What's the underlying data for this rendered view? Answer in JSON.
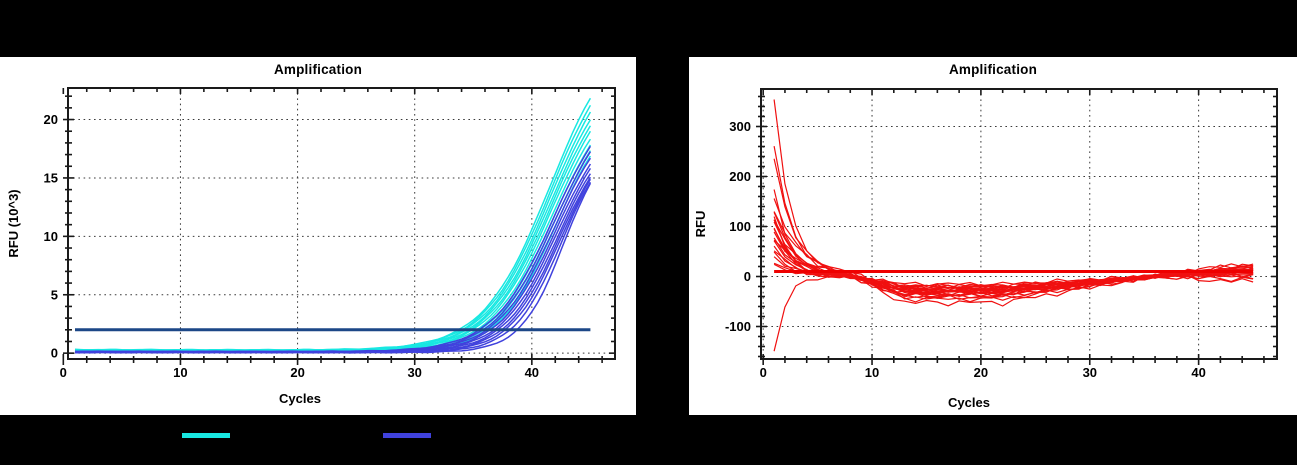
{
  "page_bg": "#000000",
  "colors": {
    "panel_bg": "#ffffff",
    "text": "#000000",
    "axis": "#1a1a1a",
    "grid": "#3a3a3a",
    "cyan_trace": "#18e8e2",
    "blue_trace": "#4042dd",
    "left_threshold": "#1c4787",
    "red_trace": "#f01010",
    "red_threshold": "#ee0000"
  },
  "legend": {
    "items": [
      {
        "id": "cyan-group",
        "color": "#18e8e2",
        "label": ""
      },
      {
        "id": "blue-group",
        "color": "#4042dd",
        "label": ""
      }
    ]
  },
  "chart_data": [
    {
      "type": "line",
      "title": "Amplification",
      "xlabel": "Cycles",
      "ylabel": "RFU (10^3)",
      "xlim": [
        0.4,
        47.1
      ],
      "ylim": [
        -0.5,
        22.7
      ],
      "xticks": [
        0,
        10,
        20,
        30,
        40
      ],
      "yticks": [
        0,
        5,
        10,
        15,
        20
      ],
      "x_minor_step": 2,
      "y_minor_step": 1,
      "grid": "dotted",
      "legend_position": "below-outside",
      "threshold": 2,
      "cycles": [
        1,
        45
      ],
      "series_model": "qpcr_sigmoid",
      "series": [
        {
          "group": "cyan",
          "ct": 34.2,
          "end": 21.6,
          "base": 0.3
        },
        {
          "group": "cyan",
          "ct": 34.4,
          "end": 21.0,
          "base": 0.28
        },
        {
          "group": "cyan",
          "ct": 34.6,
          "end": 20.4,
          "base": 0.26
        },
        {
          "group": "cyan",
          "ct": 34.8,
          "end": 19.8,
          "base": 0.24
        },
        {
          "group": "cyan",
          "ct": 35.0,
          "end": 19.3,
          "base": 0.22
        },
        {
          "group": "cyan",
          "ct": 35.2,
          "end": 18.8,
          "base": 0.2
        },
        {
          "group": "cyan",
          "ct": 35.5,
          "end": 18.2,
          "base": 0.18
        },
        {
          "group": "cyan",
          "ct": 35.8,
          "end": 17.7,
          "base": 0.16
        },
        {
          "group": "cyan",
          "ct": 36.1,
          "end": 17.2,
          "base": 0.14
        },
        {
          "group": "cyan",
          "ct": 36.5,
          "end": 16.8,
          "base": 0.12
        },
        {
          "group": "blue",
          "ct": 35.7,
          "end": 17.6,
          "base": 0.15
        },
        {
          "group": "blue",
          "ct": 36.0,
          "end": 17.1,
          "base": 0.14
        },
        {
          "group": "blue",
          "ct": 36.3,
          "end": 16.6,
          "base": 0.13
        },
        {
          "group": "blue",
          "ct": 36.6,
          "end": 16.1,
          "base": 0.12
        },
        {
          "group": "blue",
          "ct": 36.9,
          "end": 15.7,
          "base": 0.11
        },
        {
          "group": "blue",
          "ct": 37.2,
          "end": 15.3,
          "base": 0.1
        },
        {
          "group": "blue",
          "ct": 37.5,
          "end": 15.0,
          "base": 0.09
        },
        {
          "group": "blue",
          "ct": 37.8,
          "end": 14.8,
          "base": 0.08
        },
        {
          "group": "blue",
          "ct": 38.2,
          "end": 14.6,
          "base": 0.07
        },
        {
          "group": "blue",
          "ct": 38.8,
          "end": 14.5,
          "base": 0.06
        }
      ]
    },
    {
      "type": "line",
      "title": "Amplification",
      "xlabel": "Cycles",
      "ylabel": "RFU",
      "xlim": [
        -0.2,
        47.2
      ],
      "ylim": [
        -165,
        375
      ],
      "xticks": [
        0,
        10,
        20,
        30,
        40
      ],
      "yticks": [
        -100,
        0,
        100,
        200,
        300
      ],
      "x_minor_step": 2,
      "y_minor_step": 20,
      "grid": "dotted",
      "threshold": 10,
      "cycles": [
        1,
        45
      ],
      "series_model": "baseline_drift",
      "series": [
        {
          "start": 350,
          "tau": 1.6,
          "dip": 18,
          "end": 12,
          "noise": 5
        },
        {
          "start": 262,
          "tau": 1.7,
          "dip": 26,
          "end": 20,
          "noise": 6
        },
        {
          "start": 235,
          "tau": 1.9,
          "dip": 30,
          "end": 8,
          "noise": 5
        },
        {
          "start": 172,
          "tau": 1.5,
          "dip": 22,
          "end": 15,
          "noise": 4
        },
        {
          "start": 160,
          "tau": 2.2,
          "dip": 35,
          "end": 5,
          "noise": 6
        },
        {
          "start": 132,
          "tau": 1.8,
          "dip": 40,
          "end": 0,
          "noise": 5
        },
        {
          "start": 128,
          "tau": 2.6,
          "dip": 24,
          "end": 25,
          "noise": 7
        },
        {
          "start": 120,
          "tau": 1.4,
          "dip": 30,
          "end": 10,
          "noise": 4
        },
        {
          "start": 115,
          "tau": 2.0,
          "dip": 45,
          "end": -5,
          "noise": 6
        },
        {
          "start": 110,
          "tau": 1.7,
          "dip": 20,
          "end": 18,
          "noise": 5
        },
        {
          "start": 105,
          "tau": 2.3,
          "dip": 34,
          "end": 8,
          "noise": 6
        },
        {
          "start": 100,
          "tau": 1.5,
          "dip": 52,
          "end": -10,
          "noise": 7
        },
        {
          "start": 95,
          "tau": 1.9,
          "dip": 28,
          "end": 14,
          "noise": 4
        },
        {
          "start": 88,
          "tau": 2.1,
          "dip": 38,
          "end": 4,
          "noise": 5
        },
        {
          "start": 82,
          "tau": 1.6,
          "dip": 25,
          "end": 22,
          "noise": 6
        },
        {
          "start": 75,
          "tau": 2.4,
          "dip": 32,
          "end": 10,
          "noise": 4
        },
        {
          "start": 68,
          "tau": 1.8,
          "dip": 42,
          "end": 2,
          "noise": 6
        },
        {
          "start": 60,
          "tau": 1.5,
          "dip": 22,
          "end": 16,
          "noise": 5
        },
        {
          "start": 52,
          "tau": 2.0,
          "dip": 30,
          "end": 8,
          "noise": 4
        },
        {
          "start": 45,
          "tau": 1.7,
          "dip": 36,
          "end": 6,
          "noise": 5
        },
        {
          "start": 38,
          "tau": 2.2,
          "dip": 26,
          "end": 12,
          "noise": 4
        },
        {
          "start": 30,
          "tau": 1.9,
          "dip": 20,
          "end": 18,
          "noise": 5
        },
        {
          "start": 25,
          "tau": 1.6,
          "dip": 30,
          "end": 9,
          "noise": 4
        },
        {
          "start": -150,
          "tau": 1.05,
          "dip": 15,
          "end": 14,
          "noise": 5
        }
      ]
    }
  ]
}
